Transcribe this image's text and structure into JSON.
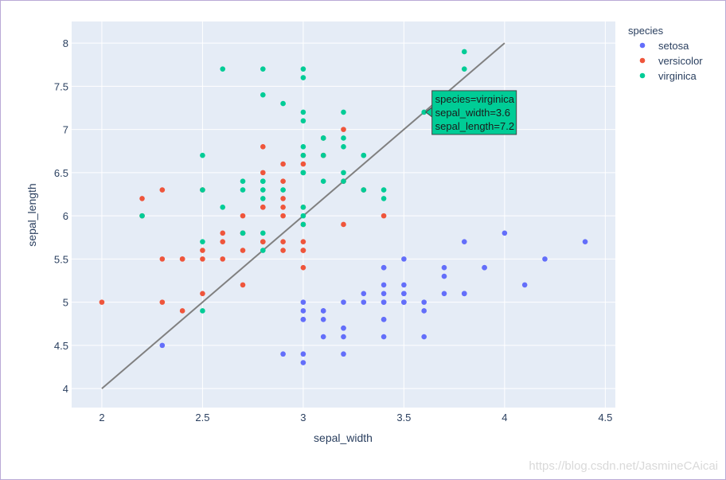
{
  "chart_data": {
    "type": "scatter",
    "xlabel": "sepal_width",
    "ylabel": "sepal_length",
    "xlim": [
      1.85,
      4.55
    ],
    "ylim": [
      3.78,
      8.25
    ],
    "xticks": [
      "2",
      "2.5",
      "3",
      "3.5",
      "4",
      "4.5"
    ],
    "yticks": [
      "4",
      "4.5",
      "5",
      "5.5",
      "6",
      "6.5",
      "7",
      "7.5",
      "8"
    ],
    "grid": true,
    "background": "#e5ecf6",
    "legend": {
      "title": "species",
      "placement": "right",
      "entries": [
        "setosa",
        "versicolor",
        "virginica"
      ]
    },
    "reference_line": {
      "color": "#808080",
      "points": [
        [
          2.0,
          4.0
        ],
        [
          4.0,
          8.0
        ]
      ]
    },
    "series": [
      {
        "name": "setosa",
        "color": "#636efa",
        "points": [
          [
            3.5,
            5.1
          ],
          [
            3.0,
            4.9
          ],
          [
            3.2,
            4.7
          ],
          [
            3.1,
            4.6
          ],
          [
            3.6,
            5.0
          ],
          [
            3.9,
            5.4
          ],
          [
            3.4,
            4.6
          ],
          [
            3.4,
            5.0
          ],
          [
            2.9,
            4.4
          ],
          [
            3.1,
            4.9
          ],
          [
            3.7,
            5.4
          ],
          [
            3.4,
            4.8
          ],
          [
            3.0,
            4.8
          ],
          [
            3.0,
            4.3
          ],
          [
            4.0,
            5.8
          ],
          [
            4.4,
            5.7
          ],
          [
            3.9,
            5.4
          ],
          [
            3.5,
            5.1
          ],
          [
            3.8,
            5.7
          ],
          [
            3.8,
            5.1
          ],
          [
            3.4,
            5.4
          ],
          [
            3.7,
            5.1
          ],
          [
            3.6,
            4.6
          ],
          [
            3.3,
            5.1
          ],
          [
            3.4,
            4.8
          ],
          [
            3.0,
            5.0
          ],
          [
            3.4,
            5.0
          ],
          [
            3.5,
            5.2
          ],
          [
            3.4,
            5.2
          ],
          [
            3.2,
            4.7
          ],
          [
            3.1,
            4.8
          ],
          [
            3.4,
            5.4
          ],
          [
            4.1,
            5.2
          ],
          [
            4.2,
            5.5
          ],
          [
            3.1,
            4.9
          ],
          [
            3.2,
            5.0
          ],
          [
            3.5,
            5.5
          ],
          [
            3.6,
            4.9
          ],
          [
            3.0,
            4.4
          ],
          [
            3.4,
            5.1
          ],
          [
            3.5,
            5.0
          ],
          [
            2.3,
            4.5
          ],
          [
            3.2,
            4.4
          ],
          [
            3.5,
            5.0
          ],
          [
            3.8,
            5.1
          ],
          [
            3.0,
            4.8
          ],
          [
            3.8,
            5.1
          ],
          [
            3.2,
            4.6
          ],
          [
            3.7,
            5.3
          ],
          [
            3.3,
            5.0
          ]
        ]
      },
      {
        "name": "versicolor",
        "color": "#ef553b",
        "points": [
          [
            3.2,
            7.0
          ],
          [
            3.2,
            6.4
          ],
          [
            3.1,
            6.9
          ],
          [
            2.3,
            5.5
          ],
          [
            2.8,
            6.5
          ],
          [
            2.8,
            5.7
          ],
          [
            3.3,
            6.3
          ],
          [
            2.4,
            4.9
          ],
          [
            2.9,
            6.6
          ],
          [
            2.7,
            5.2
          ],
          [
            2.0,
            5.0
          ],
          [
            3.0,
            5.9
          ],
          [
            2.2,
            6.0
          ],
          [
            2.9,
            6.1
          ],
          [
            2.9,
            5.6
          ],
          [
            3.1,
            6.7
          ],
          [
            3.0,
            5.6
          ],
          [
            2.7,
            5.8
          ],
          [
            2.2,
            6.2
          ],
          [
            2.5,
            5.6
          ],
          [
            3.2,
            5.9
          ],
          [
            2.8,
            6.1
          ],
          [
            2.5,
            6.3
          ],
          [
            2.8,
            6.1
          ],
          [
            2.9,
            6.4
          ],
          [
            3.0,
            6.6
          ],
          [
            2.8,
            6.8
          ],
          [
            3.0,
            6.7
          ],
          [
            2.9,
            6.0
          ],
          [
            2.6,
            5.7
          ],
          [
            2.4,
            5.5
          ],
          [
            2.4,
            5.5
          ],
          [
            2.7,
            5.8
          ],
          [
            2.7,
            6.0
          ],
          [
            3.0,
            5.4
          ],
          [
            3.4,
            6.0
          ],
          [
            3.1,
            6.7
          ],
          [
            2.3,
            6.3
          ],
          [
            3.0,
            5.6
          ],
          [
            2.5,
            5.5
          ],
          [
            2.6,
            5.5
          ],
          [
            3.0,
            6.1
          ],
          [
            2.6,
            5.8
          ],
          [
            2.3,
            5.0
          ],
          [
            2.7,
            5.6
          ],
          [
            3.0,
            5.7
          ],
          [
            2.9,
            5.7
          ],
          [
            2.9,
            6.2
          ],
          [
            2.5,
            5.1
          ],
          [
            2.8,
            5.7
          ]
        ]
      },
      {
        "name": "virginica",
        "color": "#00cc96",
        "points": [
          [
            3.3,
            6.3
          ],
          [
            2.7,
            5.8
          ],
          [
            3.0,
            7.1
          ],
          [
            2.9,
            6.3
          ],
          [
            3.0,
            6.5
          ],
          [
            3.0,
            7.6
          ],
          [
            2.5,
            4.9
          ],
          [
            2.9,
            7.3
          ],
          [
            2.5,
            6.7
          ],
          [
            3.6,
            7.2
          ],
          [
            3.2,
            6.5
          ],
          [
            2.7,
            6.4
          ],
          [
            3.0,
            6.8
          ],
          [
            2.5,
            5.7
          ],
          [
            2.8,
            5.8
          ],
          [
            3.2,
            6.4
          ],
          [
            3.0,
            6.5
          ],
          [
            3.8,
            7.7
          ],
          [
            2.6,
            7.7
          ],
          [
            2.2,
            6.0
          ],
          [
            3.2,
            6.9
          ],
          [
            2.8,
            5.6
          ],
          [
            2.8,
            7.7
          ],
          [
            2.7,
            6.3
          ],
          [
            3.3,
            6.7
          ],
          [
            3.2,
            7.2
          ],
          [
            2.8,
            6.2
          ],
          [
            3.0,
            6.1
          ],
          [
            2.8,
            6.4
          ],
          [
            3.0,
            7.2
          ],
          [
            2.8,
            7.4
          ],
          [
            3.8,
            7.9
          ],
          [
            2.8,
            6.4
          ],
          [
            2.8,
            6.3
          ],
          [
            2.6,
            6.1
          ],
          [
            3.0,
            7.7
          ],
          [
            3.4,
            6.3
          ],
          [
            3.1,
            6.4
          ],
          [
            3.0,
            6.0
          ],
          [
            3.1,
            6.9
          ],
          [
            3.1,
            6.7
          ],
          [
            3.1,
            6.9
          ],
          [
            2.7,
            5.8
          ],
          [
            3.2,
            6.8
          ],
          [
            3.3,
            6.7
          ],
          [
            3.0,
            6.7
          ],
          [
            2.5,
            6.3
          ],
          [
            3.0,
            6.5
          ],
          [
            3.4,
            6.2
          ],
          [
            3.0,
            5.9
          ]
        ]
      }
    ],
    "hover": {
      "series": "virginica",
      "x": 3.6,
      "y": 7.2,
      "lines": [
        "species=virginica",
        "sepal_width=3.6",
        "sepal_length=7.2"
      ]
    }
  },
  "watermark": "https://blog.csdn.net/JasmineCAicai"
}
